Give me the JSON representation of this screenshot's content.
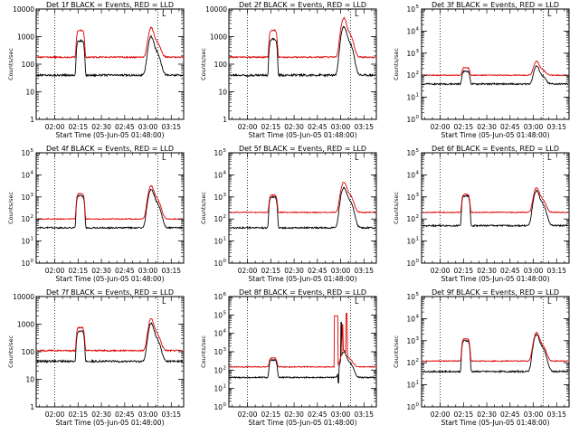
{
  "figure": {
    "x_label": "Start Time (05-Jun-05 01:48:00)",
    "y_label": "Counts/sec",
    "corner_mark": "L"
  },
  "chart_data": [
    {
      "type": "line",
      "title": "Det 1f BLACK = Events, RED = LLD",
      "ylabel": "Counts/sec",
      "xlabel": "Start Time (05-Jun-05 01:48:00)",
      "yscale": "log",
      "ylim": [
        1,
        10000
      ],
      "ytick_style": "plain",
      "x_ticks": [
        "02:00",
        "02:15",
        "02:30",
        "02:45",
        "03:00",
        "03:15"
      ],
      "x_tick_values": [
        120,
        135,
        150,
        165,
        180,
        195
      ],
      "xlim": [
        108,
        203
      ],
      "markers": [
        120,
        186.3
      ],
      "series": [
        {
          "name": "Events",
          "color": "#000000",
          "base": 40,
          "p1": 700,
          "p2": 950,
          "noise": 0.08
        },
        {
          "name": "LLD",
          "color": "#e00000",
          "base": 180,
          "p1": 1700,
          "p2": 2000,
          "noise": 0.06
        }
      ]
    },
    {
      "type": "line",
      "title": "Det 2f BLACK = Events, RED = LLD",
      "ylabel": "Counts/sec",
      "xlabel": "Start Time (05-Jun-05 01:48:00)",
      "yscale": "log",
      "ylim": [
        1,
        10000
      ],
      "ytick_style": "plain",
      "x_ticks": [
        "02:00",
        "02:15",
        "02:30",
        "02:45",
        "03:00",
        "03:15"
      ],
      "x_tick_values": [
        120,
        135,
        150,
        165,
        180,
        195
      ],
      "xlim": [
        108,
        203
      ],
      "markers": [
        120,
        186.3
      ],
      "series": [
        {
          "name": "Events",
          "color": "#000000",
          "base": 40,
          "p1": 800,
          "p2": 2200,
          "noise": 0.09
        },
        {
          "name": "LLD",
          "color": "#e00000",
          "base": 180,
          "p1": 1700,
          "p2": 4500,
          "noise": 0.06
        }
      ]
    },
    {
      "type": "line",
      "title": "Det 3f BLACK = Events, RED = LLD",
      "ylabel": "Counts/sec",
      "xlabel": "Start Time (05-Jun-05 01:48:00)",
      "yscale": "log",
      "ylim": [
        1,
        100000
      ],
      "ytick_style": "exp",
      "x_ticks": [
        "02:00",
        "02:15",
        "02:30",
        "02:45",
        "03:00",
        "03:15"
      ],
      "x_tick_values": [
        120,
        135,
        150,
        165,
        180,
        195
      ],
      "xlim": [
        108,
        203
      ],
      "markers": [
        120,
        186.3
      ],
      "series": [
        {
          "name": "Events",
          "color": "#000000",
          "base": 40,
          "p1": 150,
          "p2": 250,
          "noise": 0.08
        },
        {
          "name": "LLD",
          "color": "#e00000",
          "base": 100,
          "p1": 220,
          "p2": 420,
          "noise": 0.05
        }
      ]
    },
    {
      "type": "line",
      "title": "Det 4f BLACK = Events, RED = LLD",
      "ylabel": "Counts/sec",
      "xlabel": "Start Time (05-Jun-05 01:48:00)",
      "yscale": "log",
      "ylim": [
        1,
        100000
      ],
      "ytick_style": "exp",
      "x_ticks": [
        "02:00",
        "02:15",
        "02:30",
        "02:45",
        "03:00",
        "03:15"
      ],
      "x_tick_values": [
        120,
        135,
        150,
        165,
        180,
        195
      ],
      "xlim": [
        108,
        203
      ],
      "markers": [
        120,
        186.3
      ],
      "series": [
        {
          "name": "Events",
          "color": "#000000",
          "base": 40,
          "p1": 1100,
          "p2": 2000,
          "noise": 0.08
        },
        {
          "name": "LLD",
          "color": "#e00000",
          "base": 100,
          "p1": 1400,
          "p2": 3000,
          "noise": 0.05
        }
      ]
    },
    {
      "type": "line",
      "title": "Det 5f BLACK = Events, RED = LLD",
      "ylabel": "Counts/sec",
      "xlabel": "Start Time (05-Jun-05 01:48:00)",
      "yscale": "log",
      "ylim": [
        1,
        100000
      ],
      "ytick_style": "exp",
      "x_ticks": [
        "02:00",
        "02:15",
        "02:30",
        "02:45",
        "03:00",
        "03:15"
      ],
      "x_tick_values": [
        120,
        135,
        150,
        165,
        180,
        195
      ],
      "xlim": [
        108,
        203
      ],
      "markers": [
        120,
        186.3
      ],
      "series": [
        {
          "name": "Events",
          "color": "#000000",
          "base": 40,
          "p1": 1000,
          "p2": 2500,
          "noise": 0.08
        },
        {
          "name": "LLD",
          "color": "#e00000",
          "base": 200,
          "p1": 1200,
          "p2": 4500,
          "noise": 0.05
        }
      ]
    },
    {
      "type": "line",
      "title": "Det 6f BLACK = Events, RED = LLD",
      "ylabel": "Counts/sec",
      "xlabel": "Start Time (05-Jun-05 01:48:00)",
      "yscale": "log",
      "ylim": [
        1,
        100000
      ],
      "ytick_style": "exp",
      "x_ticks": [
        "02:00",
        "02:15",
        "02:30",
        "02:45",
        "03:00",
        "03:15"
      ],
      "x_tick_values": [
        120,
        135,
        150,
        165,
        180,
        195
      ],
      "xlim": [
        108,
        203
      ],
      "markers": [
        120,
        186.3
      ],
      "series": [
        {
          "name": "Events",
          "color": "#000000",
          "base": 50,
          "p1": 1100,
          "p2": 1800,
          "noise": 0.08
        },
        {
          "name": "LLD",
          "color": "#e00000",
          "base": 200,
          "p1": 1300,
          "p2": 2500,
          "noise": 0.05
        }
      ]
    },
    {
      "type": "line",
      "title": "Det 7f BLACK = Events, RED = LLD",
      "ylabel": "Counts/sec",
      "xlabel": "Start Time (05-Jun-05 01:48:00)",
      "yscale": "log",
      "ylim": [
        1,
        10000
      ],
      "ytick_style": "plain",
      "x_ticks": [
        "02:00",
        "02:15",
        "02:30",
        "02:45",
        "03:00",
        "03:15"
      ],
      "x_tick_values": [
        120,
        135,
        150,
        165,
        180,
        195
      ],
      "xlim": [
        108,
        203
      ],
      "markers": [
        120,
        186.3
      ],
      "series": [
        {
          "name": "Events",
          "color": "#000000",
          "base": 45,
          "p1": 550,
          "p2": 1000,
          "noise": 0.08
        },
        {
          "name": "LLD",
          "color": "#e00000",
          "base": 110,
          "p1": 750,
          "p2": 1500,
          "noise": 0.06
        }
      ]
    },
    {
      "type": "line",
      "title": "Det 8f BLACK = Events, RED = LLD",
      "ylabel": "Counts/sec",
      "xlabel": "Start Time (05-Jun-05 01:48:00)",
      "yscale": "log",
      "ylim": [
        1,
        1000000
      ],
      "ytick_style": "exp",
      "x_ticks": [
        "02:00",
        "02:15",
        "02:30",
        "02:45",
        "03:00",
        "03:15"
      ],
      "x_tick_values": [
        120,
        135,
        150,
        165,
        180,
        195
      ],
      "xlim": [
        108,
        203
      ],
      "markers": [
        120,
        186.3
      ],
      "spike": true,
      "series": [
        {
          "name": "Events",
          "color": "#000000",
          "base": 40,
          "p1": 350,
          "p2": 900,
          "noise": 0.08
        },
        {
          "name": "LLD",
          "color": "#e00000",
          "base": 150,
          "p1": 450,
          "p2": 1100,
          "noise": 0.06
        }
      ]
    },
    {
      "type": "line",
      "title": "Det 9f BLACK = Events, RED = LLD",
      "ylabel": "Counts/sec",
      "xlabel": "Start Time (05-Jun-05 01:48:00)",
      "yscale": "log",
      "ylim": [
        1,
        100000
      ],
      "ytick_style": "exp",
      "x_ticks": [
        "02:00",
        "02:15",
        "02:30",
        "02:45",
        "03:00",
        "03:15"
      ],
      "x_tick_values": [
        120,
        135,
        150,
        165,
        180,
        195
      ],
      "xlim": [
        108,
        203
      ],
      "markers": [
        120,
        186.3
      ],
      "series": [
        {
          "name": "Events",
          "color": "#000000",
          "base": 40,
          "p1": 1000,
          "p2": 1800,
          "noise": 0.08
        },
        {
          "name": "LLD",
          "color": "#e00000",
          "base": 120,
          "p1": 1200,
          "p2": 2200,
          "noise": 0.05
        }
      ]
    }
  ]
}
